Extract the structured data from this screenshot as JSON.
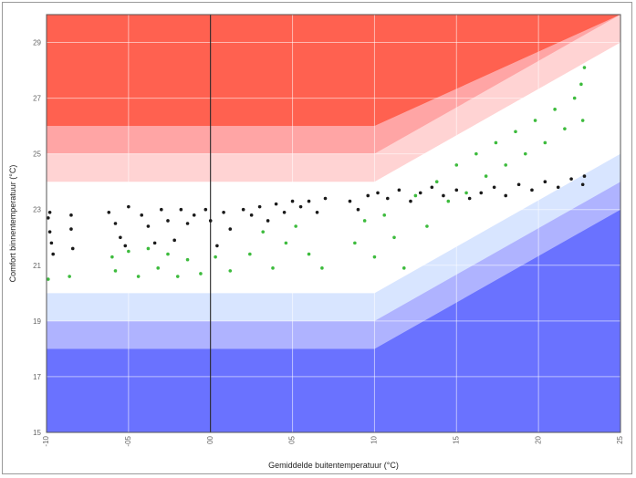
{
  "chart_data": {
    "type": "scatter",
    "xlabel": "Gemiddelde buitentemperatuur (°C)",
    "ylabel": "Comfort binnentemperatuur (°C)",
    "xlim": [
      -10,
      25
    ],
    "ylim": [
      15,
      30
    ],
    "x_tick_values": [
      -10,
      -5,
      0,
      5,
      10,
      15,
      20,
      25
    ],
    "x_tick_labels": [
      "-10",
      "-05",
      "00",
      "05",
      "10",
      "15",
      "20",
      "25"
    ],
    "y_tick_values": [
      15,
      17,
      19,
      21,
      23,
      25,
      27,
      29
    ],
    "y_tick_labels": [
      "15",
      "17",
      "19",
      "21",
      "23",
      "25",
      "27",
      "29"
    ],
    "grid": true,
    "vertical_marker_x": 0,
    "comfort_bands": {
      "breakpoint_x": 10,
      "slope": 0.3333,
      "upper_boundaries_at_or_below_10": [
        24,
        25,
        26
      ],
      "lower_boundaries_at_or_below_10": [
        20,
        19,
        18
      ],
      "upper_colors": [
        "#ffd3d3",
        "#ffa5a5",
        "#ff6150"
      ],
      "lower_colors": [
        "#d8e5ff",
        "#afb3ff",
        "#6a72ff"
      ]
    },
    "series": [
      {
        "color": "#1a1a1a",
        "approx_points": [
          [
            -9.9,
            22.7
          ],
          [
            -9.8,
            22.2
          ],
          [
            -9.7,
            21.8
          ],
          [
            -9.6,
            21.4
          ],
          [
            -9.8,
            22.9
          ],
          [
            -8.5,
            22.8
          ],
          [
            -8.5,
            22.3
          ],
          [
            -8.4,
            21.6
          ],
          [
            -6.2,
            22.9
          ],
          [
            -5.8,
            22.5
          ],
          [
            -5.5,
            22.0
          ],
          [
            -5.2,
            21.7
          ],
          [
            -5.0,
            23.1
          ],
          [
            -4.2,
            22.8
          ],
          [
            -3.8,
            22.4
          ],
          [
            -3.4,
            21.8
          ],
          [
            -3.0,
            23.0
          ],
          [
            -2.6,
            22.6
          ],
          [
            -2.2,
            21.9
          ],
          [
            -1.8,
            23.0
          ],
          [
            -1.4,
            22.5
          ],
          [
            -1.0,
            22.8
          ],
          [
            -0.3,
            23.0
          ],
          [
            0.0,
            22.6
          ],
          [
            0.4,
            21.7
          ],
          [
            0.8,
            22.9
          ],
          [
            1.2,
            22.3
          ],
          [
            2.0,
            23.0
          ],
          [
            2.5,
            22.8
          ],
          [
            3.0,
            23.1
          ],
          [
            3.5,
            22.6
          ],
          [
            4.0,
            23.2
          ],
          [
            4.5,
            22.9
          ],
          [
            5.0,
            23.3
          ],
          [
            5.5,
            23.1
          ],
          [
            6.0,
            23.3
          ],
          [
            6.5,
            22.9
          ],
          [
            7.0,
            23.4
          ],
          [
            8.5,
            23.3
          ],
          [
            9.0,
            23.0
          ],
          [
            9.6,
            23.5
          ],
          [
            10.2,
            23.6
          ],
          [
            10.8,
            23.4
          ],
          [
            11.5,
            23.7
          ],
          [
            12.2,
            23.3
          ],
          [
            12.8,
            23.6
          ],
          [
            13.5,
            23.8
          ],
          [
            14.2,
            23.5
          ],
          [
            15.0,
            23.7
          ],
          [
            15.8,
            23.4
          ],
          [
            16.5,
            23.6
          ],
          [
            17.3,
            23.8
          ],
          [
            18.0,
            23.5
          ],
          [
            18.8,
            23.9
          ],
          [
            19.6,
            23.7
          ],
          [
            20.4,
            24.0
          ],
          [
            21.2,
            23.8
          ],
          [
            22.0,
            24.1
          ],
          [
            22.7,
            23.9
          ],
          [
            22.8,
            24.2
          ]
        ]
      },
      {
        "color": "#3dbb3d",
        "approx_points": [
          [
            -9.9,
            20.5
          ],
          [
            -8.6,
            20.6
          ],
          [
            -6.0,
            21.3
          ],
          [
            -5.8,
            20.8
          ],
          [
            -5.0,
            21.5
          ],
          [
            -4.4,
            20.6
          ],
          [
            -3.8,
            21.6
          ],
          [
            -3.2,
            20.9
          ],
          [
            -2.6,
            21.4
          ],
          [
            -2.0,
            20.6
          ],
          [
            -1.4,
            21.2
          ],
          [
            -0.6,
            20.7
          ],
          [
            0.3,
            21.3
          ],
          [
            1.2,
            20.8
          ],
          [
            2.4,
            21.4
          ],
          [
            3.2,
            22.2
          ],
          [
            3.8,
            20.9
          ],
          [
            4.6,
            21.8
          ],
          [
            5.2,
            22.4
          ],
          [
            6.0,
            21.4
          ],
          [
            6.8,
            20.9
          ],
          [
            8.8,
            21.8
          ],
          [
            9.4,
            22.6
          ],
          [
            10.0,
            21.3
          ],
          [
            10.6,
            22.8
          ],
          [
            11.2,
            22.0
          ],
          [
            11.8,
            20.9
          ],
          [
            12.5,
            23.5
          ],
          [
            13.2,
            22.4
          ],
          [
            13.8,
            24.0
          ],
          [
            14.5,
            23.3
          ],
          [
            15.0,
            24.6
          ],
          [
            15.6,
            23.6
          ],
          [
            16.2,
            25.0
          ],
          [
            16.8,
            24.2
          ],
          [
            17.4,
            25.4
          ],
          [
            18.0,
            24.6
          ],
          [
            18.6,
            25.8
          ],
          [
            19.2,
            25.0
          ],
          [
            19.8,
            26.2
          ],
          [
            20.4,
            25.4
          ],
          [
            21.0,
            26.6
          ],
          [
            21.6,
            25.9
          ],
          [
            22.2,
            27.0
          ],
          [
            22.6,
            27.5
          ],
          [
            22.7,
            26.2
          ],
          [
            22.8,
            28.1
          ]
        ]
      }
    ]
  }
}
